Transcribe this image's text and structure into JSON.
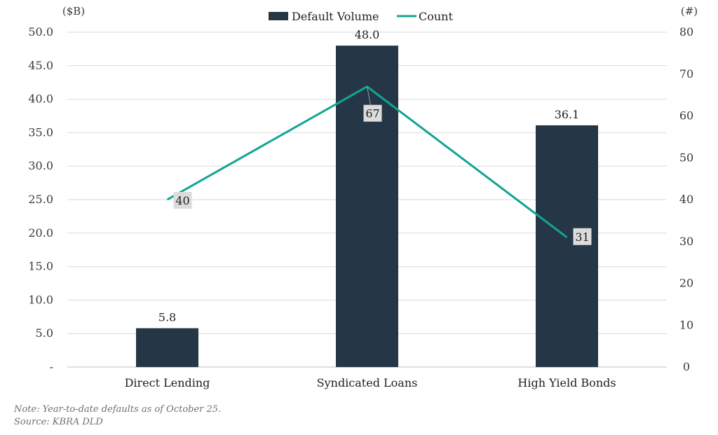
{
  "chart_data": {
    "type": "bar",
    "categories": [
      "Direct Lending",
      "Syndicated Loans",
      "High Yield Bonds"
    ],
    "series": [
      {
        "name": "Default Volume",
        "type": "bar",
        "axis": "left",
        "values": [
          5.8,
          48.0,
          36.1
        ],
        "labels": [
          "5.8",
          "48.0",
          "36.1"
        ],
        "color": "#253746"
      },
      {
        "name": "Count",
        "type": "line",
        "axis": "right",
        "values": [
          40,
          67,
          31
        ],
        "labels": [
          "40",
          "67",
          "31"
        ],
        "color": "#12a592"
      }
    ],
    "y_left": {
      "unit_label": "($B)",
      "ylim": [
        0,
        50
      ],
      "ticks": [
        0,
        5,
        10,
        15,
        20,
        25,
        30,
        35,
        40,
        45,
        50
      ],
      "tick_labels": [
        "-",
        "5.0",
        "10.0",
        "15.0",
        "20.0",
        "25.0",
        "30.0",
        "35.0",
        "40.0",
        "45.0",
        "50.0"
      ]
    },
    "y_right": {
      "unit_label": "(#)",
      "ylim": [
        0,
        80
      ],
      "ticks": [
        0,
        10,
        20,
        30,
        40,
        50,
        60,
        70,
        80
      ],
      "tick_labels": [
        "0",
        "10",
        "20",
        "30",
        "40",
        "50",
        "60",
        "70",
        "80"
      ]
    },
    "grid": true,
    "legend_position": "top-center",
    "label_box_color": "#dcdcdc"
  },
  "notes": {
    "note": "Note: Year-to-date defaults as of October 25.",
    "source": "Source: KBRA DLD"
  }
}
